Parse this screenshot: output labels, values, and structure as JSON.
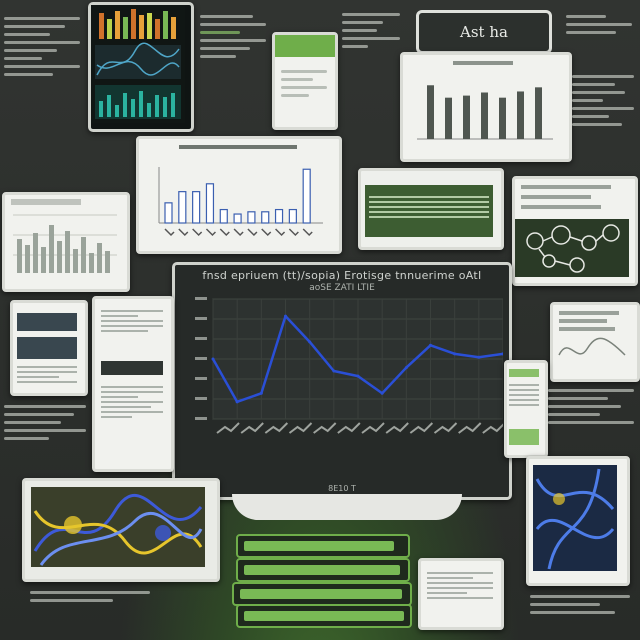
{
  "sign": {
    "text": "Ast ha"
  },
  "main_chart": {
    "title": "fnsd epriuem (tt)/sopia) Erotisge tnnuerime oAtI",
    "subtitle": "aoSE ZATI LTIE",
    "footer": "8E10 T"
  },
  "chart_data": [
    {
      "type": "line",
      "x": [
        0,
        1,
        2,
        3,
        4,
        5,
        6,
        7,
        8,
        9,
        10,
        11,
        12
      ],
      "series": [
        {
          "values": [
            35,
            10,
            15,
            60,
            45,
            28,
            25,
            15,
            30,
            43,
            38,
            36,
            38
          ]
        }
      ],
      "ylim": [
        0,
        70
      ],
      "grid": true
    },
    {
      "type": "bar",
      "values": [
        18,
        28,
        28,
        35,
        12,
        8,
        10,
        10,
        12,
        12,
        48
      ],
      "ylim": [
        0,
        50
      ]
    },
    {
      "type": "bar",
      "values": [
        52,
        40,
        42,
        45,
        40,
        46,
        50
      ],
      "ylim": [
        0,
        60
      ]
    }
  ],
  "colors": {
    "board": "#2c2f2c",
    "line": "#2a4fd6",
    "accent_green": "#79b955"
  }
}
